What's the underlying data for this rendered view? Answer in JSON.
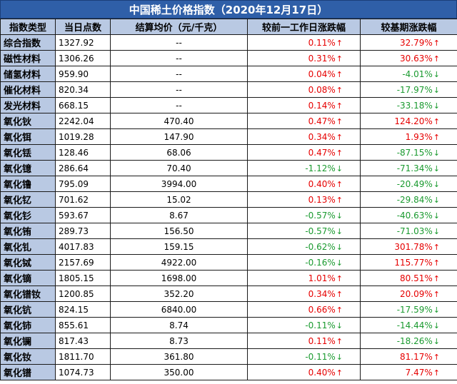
{
  "title": "中国稀土价格指数（2020年12月17日）",
  "headers": [
    "指数类型",
    "当日点数",
    "结算均价（元/千克）",
    "较前一工作日涨跌幅",
    "较基期涨跌幅"
  ],
  "colors": {
    "up": "#e60000",
    "down": "#1a9a2f",
    "header_bg": "#b9c9e3",
    "title_bg": "#2f5fa8"
  },
  "rows": [
    {
      "name": "综合指数",
      "points": "1327.92",
      "avg": "--",
      "day_change": "0.11%",
      "day_dir": "up",
      "base_change": "32.79%",
      "base_dir": "up"
    },
    {
      "name": "磁性材料",
      "points": "1306.26",
      "avg": "--",
      "day_change": "0.31%",
      "day_dir": "up",
      "base_change": "30.63%",
      "base_dir": "up"
    },
    {
      "name": "储氢材料",
      "points": "959.90",
      "avg": "--",
      "day_change": "0.04%",
      "day_dir": "up",
      "base_change": "-4.01%",
      "base_dir": "down"
    },
    {
      "name": "催化材料",
      "points": "820.34",
      "avg": "--",
      "day_change": "0.08%",
      "day_dir": "up",
      "base_change": "-17.97%",
      "base_dir": "down"
    },
    {
      "name": "发光材料",
      "points": "668.15",
      "avg": "--",
      "day_change": "0.14%",
      "day_dir": "up",
      "base_change": "-33.18%",
      "base_dir": "down"
    },
    {
      "name": "氧化钬",
      "points": "2242.04",
      "avg": "470.40",
      "day_change": "0.47%",
      "day_dir": "up",
      "base_change": "124.20%",
      "base_dir": "up"
    },
    {
      "name": "氧化铒",
      "points": "1019.28",
      "avg": "147.90",
      "day_change": "0.34%",
      "day_dir": "up",
      "base_change": "1.93%",
      "base_dir": "up"
    },
    {
      "name": "氧化铥",
      "points": "128.46",
      "avg": "68.06",
      "day_change": "0.47%",
      "day_dir": "up",
      "base_change": "-87.15%",
      "base_dir": "down"
    },
    {
      "name": "氧化镱",
      "points": "286.64",
      "avg": "70.40",
      "day_change": "-1.12%",
      "day_dir": "down",
      "base_change": "-71.34%",
      "base_dir": "down"
    },
    {
      "name": "氧化镥",
      "points": "795.09",
      "avg": "3994.00",
      "day_change": "0.40%",
      "day_dir": "up",
      "base_change": "-20.49%",
      "base_dir": "down"
    },
    {
      "name": "氧化钇",
      "points": "701.62",
      "avg": "15.02",
      "day_change": "0.13%",
      "day_dir": "up",
      "base_change": "-29.84%",
      "base_dir": "down"
    },
    {
      "name": "氧化钐",
      "points": "593.67",
      "avg": "8.67",
      "day_change": "-0.57%",
      "day_dir": "down",
      "base_change": "-40.63%",
      "base_dir": "down"
    },
    {
      "name": "氧化铕",
      "points": "289.73",
      "avg": "156.50",
      "day_change": "-0.57%",
      "day_dir": "down",
      "base_change": "-71.03%",
      "base_dir": "down"
    },
    {
      "name": "氧化钆",
      "points": "4017.83",
      "avg": "159.15",
      "day_change": "-0.62%",
      "day_dir": "down",
      "base_change": "301.78%",
      "base_dir": "up"
    },
    {
      "name": "氧化铽",
      "points": "2157.69",
      "avg": "4922.00",
      "day_change": "-0.16%",
      "day_dir": "down",
      "base_change": "115.77%",
      "base_dir": "up"
    },
    {
      "name": "氧化镝",
      "points": "1805.15",
      "avg": "1698.00",
      "day_change": "1.01%",
      "day_dir": "up",
      "base_change": "80.51%",
      "base_dir": "up"
    },
    {
      "name": "氧化镨钕",
      "points": "1200.85",
      "avg": "352.20",
      "day_change": "0.34%",
      "day_dir": "up",
      "base_change": "20.09%",
      "base_dir": "up"
    },
    {
      "name": "氧化钪",
      "points": "824.15",
      "avg": "6840.00",
      "day_change": "0.66%",
      "day_dir": "up",
      "base_change": "-17.59%",
      "base_dir": "down"
    },
    {
      "name": "氧化铈",
      "points": "855.61",
      "avg": "8.74",
      "day_change": "-0.11%",
      "day_dir": "down",
      "base_change": "-14.44%",
      "base_dir": "down"
    },
    {
      "name": "氧化镧",
      "points": "817.43",
      "avg": "8.73",
      "day_change": "0.11%",
      "day_dir": "up",
      "base_change": "-18.26%",
      "base_dir": "down"
    },
    {
      "name": "氧化钕",
      "points": "1811.70",
      "avg": "361.80",
      "day_change": "-0.11%",
      "day_dir": "down",
      "base_change": "81.17%",
      "base_dir": "up"
    },
    {
      "name": "氧化镨",
      "points": "1074.73",
      "avg": "350.00",
      "day_change": "0.40%",
      "day_dir": "up",
      "base_change": "7.47%",
      "base_dir": "up"
    }
  ]
}
